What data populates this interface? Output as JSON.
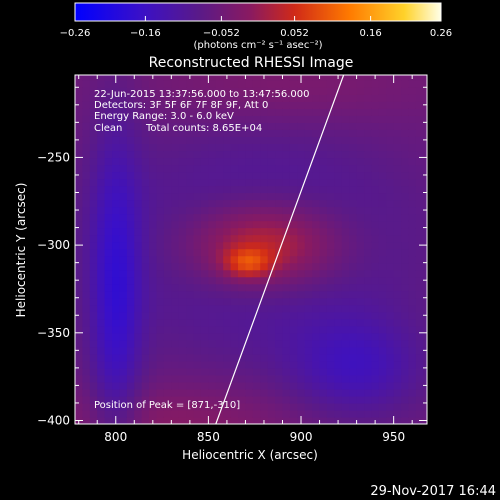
{
  "chart_data": {
    "type": "heatmap",
    "title": "Reconstructed RHESSI Image",
    "xlabel": "Heliocentric X (arcsec)",
    "ylabel": "Heliocentric Y (arcsec)",
    "xlim": [
      778,
      968
    ],
    "ylim": [
      -402,
      -203
    ],
    "x_ticks": [
      800,
      850,
      900,
      950
    ],
    "y_ticks": [
      -250,
      -300,
      -350,
      -400
    ],
    "colorbar": {
      "label": "(photons cm⁻² s⁻¹ asec⁻²)",
      "range": [
        -0.26,
        0.26
      ],
      "ticks": [
        "−0.26",
        "−0.16",
        "−0.052",
        "0.052",
        "0.16",
        "0.26"
      ],
      "tick_values": [
        -0.26,
        -0.16,
        -0.052,
        0.052,
        0.16,
        0.26
      ],
      "colormap": "red-temperature (blue → purple → red → orange → yellow → white)"
    },
    "annotations": {
      "time_range": "22-Jun-2015 13:37:56.000 to 13:47:56.000",
      "detectors": "Detectors: 3F 5F 6F 7F 8F 9F, Att 0",
      "energy": "Energy Range: 3.0 - 6.0 keV",
      "method": "Clean",
      "counts": "Total counts: 8.65E+04",
      "peak": "Position of Peak = [871,-310]"
    },
    "peak_position": [
      871,
      -310
    ],
    "peak_value": 0.26,
    "limb_line": [
      [
        854,
        -402
      ],
      [
        923,
        -203
      ]
    ],
    "features": [
      {
        "kind": "positive-source",
        "x": 880,
        "y": -300,
        "sx": 30,
        "sy": 18,
        "amp": 0.16
      },
      {
        "kind": "positive-source",
        "x": 871,
        "y": -310,
        "sx": 9,
        "sy": 6,
        "amp": 0.1
      },
      {
        "kind": "negative-ring",
        "x": 880,
        "y": -300,
        "sx": 60,
        "sy": 45,
        "amp": -0.08
      },
      {
        "kind": "negative-sidelobe",
        "x": 800,
        "y": -330,
        "sx": 10,
        "sy": 70,
        "amp": -0.1
      },
      {
        "kind": "negative-sidelobe",
        "x": 930,
        "y": -370,
        "sx": 25,
        "sy": 20,
        "amp": -0.08
      },
      {
        "kind": "positive-sidelobe",
        "x": 890,
        "y": -210,
        "sx": 50,
        "sy": 15,
        "amp": 0.03
      },
      {
        "kind": "positive-sidelobe",
        "x": 830,
        "y": -400,
        "sx": 50,
        "sy": 15,
        "amp": 0.04
      }
    ]
  },
  "footer": {
    "date": "29-Nov-2017 16:44"
  }
}
